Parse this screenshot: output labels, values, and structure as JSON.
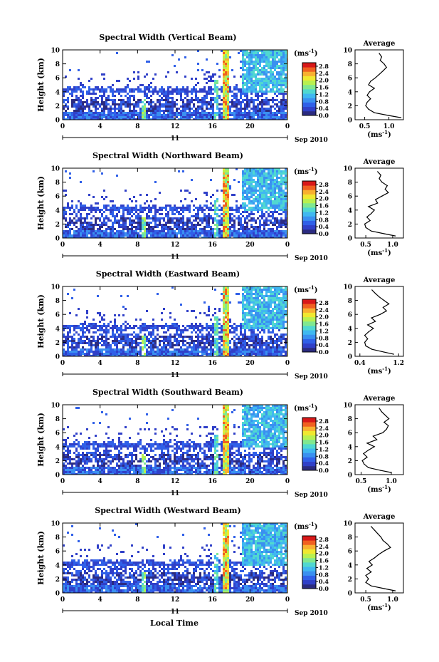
{
  "colors": {
    "background": "#ffffff",
    "foreground": "#000000",
    "colorbar": [
      "#2b2b80",
      "#3040c8",
      "#3060e8",
      "#3a90f0",
      "#40b8f0",
      "#50d8d0",
      "#80e890",
      "#b8f050",
      "#f0e830",
      "#f8b030",
      "#f06020",
      "#d81818"
    ]
  },
  "figure": {
    "xlabel": "Local Time",
    "month_label": "Sep 2010",
    "day_label": "11",
    "colorbar_unit": "(ms",
    "colorbar_unit_exp": "-1",
    "colorbar_unit_close": ")",
    "avg_title": "Average",
    "avg_xlabel": "(ms",
    "avg_xlabel_exp": "-1",
    "avg_xlabel_close": ")"
  },
  "chart_data": [
    {
      "type": "heatmap",
      "title": "Spectral Width (Vertical Beam)",
      "ylabel": "Height (km)",
      "x_ticks": [
        "0",
        "4",
        "8",
        "12",
        "16",
        "20",
        "0"
      ],
      "xlim": [
        0,
        24
      ],
      "ylim": [
        0,
        10
      ],
      "y_ticks": [
        "0",
        "2",
        "4",
        "6",
        "8",
        "10"
      ],
      "colorbar_ticks": [
        "0.0",
        "0.4",
        "0.8",
        "1.2",
        "1.6",
        "2.0",
        "2.4",
        "2.8"
      ],
      "colorbar_range": [
        0,
        3.0
      ],
      "average": {
        "type": "line",
        "title": "Average",
        "x_ticks": [
          "0.5",
          "1.0"
        ],
        "xlim": [
          0.3,
          1.3
        ],
        "heights": [
          0.3,
          0.6,
          1.0,
          1.5,
          2.0,
          2.5,
          3.0,
          3.5,
          4.0,
          4.5,
          5.0,
          5.5,
          6.0,
          6.5,
          7.0,
          7.5,
          8.0,
          8.5,
          9.0,
          9.5
        ],
        "values": [
          1.25,
          1.0,
          0.7,
          0.58,
          0.52,
          0.55,
          0.62,
          0.55,
          0.6,
          0.7,
          0.58,
          0.62,
          0.72,
          0.8,
          0.88,
          0.95,
          0.9,
          0.82,
          0.85,
          0.8
        ]
      }
    },
    {
      "type": "heatmap",
      "title": "Spectral Width (Northward Beam)",
      "ylabel": "Height (km)",
      "x_ticks": [
        "0",
        "4",
        "8",
        "12",
        "16",
        "20",
        "0"
      ],
      "xlim": [
        0,
        24
      ],
      "ylim": [
        0,
        10
      ],
      "y_ticks": [
        "0",
        "2",
        "4",
        "6",
        "8",
        "10"
      ],
      "colorbar_ticks": [
        "0.0",
        "0.4",
        "0.8",
        "1.2",
        "1.6",
        "2.0",
        "2.4",
        "2.8"
      ],
      "colorbar_range": [
        0,
        3.0
      ],
      "average": {
        "type": "line",
        "title": "Average",
        "x_ticks": [
          "0.5",
          "1.0"
        ],
        "xlim": [
          0.3,
          1.2
        ],
        "heights": [
          0.3,
          0.6,
          1.0,
          1.5,
          2.0,
          2.5,
          3.0,
          3.5,
          4.0,
          4.5,
          5.0,
          5.5,
          6.0,
          6.5,
          7.0,
          7.5,
          8.0,
          8.5,
          9.0,
          9.5
        ],
        "values": [
          1.05,
          0.85,
          0.6,
          0.5,
          0.48,
          0.58,
          0.52,
          0.6,
          0.66,
          0.55,
          0.72,
          0.68,
          0.8,
          0.92,
          0.86,
          0.9,
          0.8,
          0.75,
          0.78,
          0.72
        ]
      }
    },
    {
      "type": "heatmap",
      "title": "Spectral Width (Eastward Beam)",
      "ylabel": "Height (km)",
      "x_ticks": [
        "0",
        "4",
        "8",
        "12",
        "16",
        "20",
        "0"
      ],
      "xlim": [
        0,
        24
      ],
      "ylim": [
        0,
        10
      ],
      "y_ticks": [
        "0",
        "2",
        "4",
        "6",
        "8",
        "10"
      ],
      "colorbar_ticks": [
        "0.0",
        "0.4",
        "0.8",
        "1.2",
        "1.6",
        "2.0",
        "2.4",
        "2.8"
      ],
      "colorbar_range": [
        0,
        3.0
      ],
      "average": {
        "type": "line",
        "title": "Average",
        "x_ticks": [
          "0.4",
          "1.2"
        ],
        "xlim": [
          0.3,
          1.3
        ],
        "heights": [
          0.3,
          0.6,
          1.0,
          1.5,
          2.0,
          2.5,
          3.0,
          3.5,
          4.0,
          4.5,
          5.0,
          5.5,
          6.0,
          6.5,
          7.0,
          7.5,
          8.0,
          8.5,
          9.0,
          9.5
        ],
        "values": [
          1.1,
          0.9,
          0.65,
          0.52,
          0.5,
          0.56,
          0.5,
          0.58,
          0.68,
          0.56,
          0.72,
          0.64,
          0.82,
          0.95,
          0.88,
          1.0,
          0.9,
          0.8,
          0.72,
          0.65
        ]
      }
    },
    {
      "type": "heatmap",
      "title": "Spectral Width (Southward Beam)",
      "ylabel": "Height (km)",
      "x_ticks": [
        "0",
        "4",
        "8",
        "12",
        "16",
        "20",
        "0"
      ],
      "xlim": [
        0,
        24
      ],
      "ylim": [
        0,
        10
      ],
      "y_ticks": [
        "0",
        "2",
        "4",
        "6",
        "8",
        "10"
      ],
      "colorbar_ticks": [
        "0.0",
        "0.4",
        "0.8",
        "1.2",
        "1.6",
        "2.0",
        "2.4",
        "2.8"
      ],
      "colorbar_range": [
        0,
        3.0
      ],
      "average": {
        "type": "line",
        "title": "Average",
        "x_ticks": [
          "0.5",
          "1.0"
        ],
        "xlim": [
          0.4,
          1.2
        ],
        "heights": [
          0.3,
          0.6,
          1.0,
          1.5,
          2.0,
          2.5,
          3.0,
          3.5,
          4.0,
          4.5,
          5.0,
          5.5,
          6.0,
          6.5,
          7.0,
          7.5,
          8.0,
          8.5,
          9.0,
          9.5
        ],
        "values": [
          1.0,
          0.82,
          0.62,
          0.55,
          0.52,
          0.6,
          0.54,
          0.62,
          0.72,
          0.6,
          0.76,
          0.7,
          0.86,
          0.92,
          0.95,
          0.88,
          0.96,
          0.9,
          0.84,
          0.8
        ]
      }
    },
    {
      "type": "heatmap",
      "title": "Spectral Width (Westward Beam)",
      "ylabel": "Height (km)",
      "x_ticks": [
        "0",
        "4",
        "8",
        "12",
        "16",
        "20",
        "0"
      ],
      "xlim": [
        0,
        24
      ],
      "ylim": [
        0,
        10
      ],
      "y_ticks": [
        "0",
        "2",
        "4",
        "6",
        "8",
        "10"
      ],
      "colorbar_ticks": [
        "0.0",
        "0.4",
        "0.8",
        "1.2",
        "1.6",
        "2.0",
        "2.4",
        "2.8"
      ],
      "colorbar_range": [
        0,
        3.0
      ],
      "average": {
        "type": "line",
        "title": "Average",
        "x_ticks": [
          "0.5",
          "1.0"
        ],
        "xlim": [
          0.3,
          1.2
        ],
        "heights": [
          0.3,
          0.6,
          1.0,
          1.5,
          2.0,
          2.5,
          3.0,
          3.5,
          4.0,
          4.5,
          5.0,
          5.5,
          6.0,
          6.5,
          7.0,
          7.5,
          8.0,
          8.5,
          9.0,
          9.5
        ],
        "values": [
          1.05,
          0.85,
          0.6,
          0.5,
          0.55,
          0.5,
          0.6,
          0.52,
          0.62,
          0.56,
          0.66,
          0.74,
          0.84,
          0.96,
          0.9,
          0.82,
          0.78,
          0.72,
          0.66,
          0.6
        ]
      }
    }
  ]
}
